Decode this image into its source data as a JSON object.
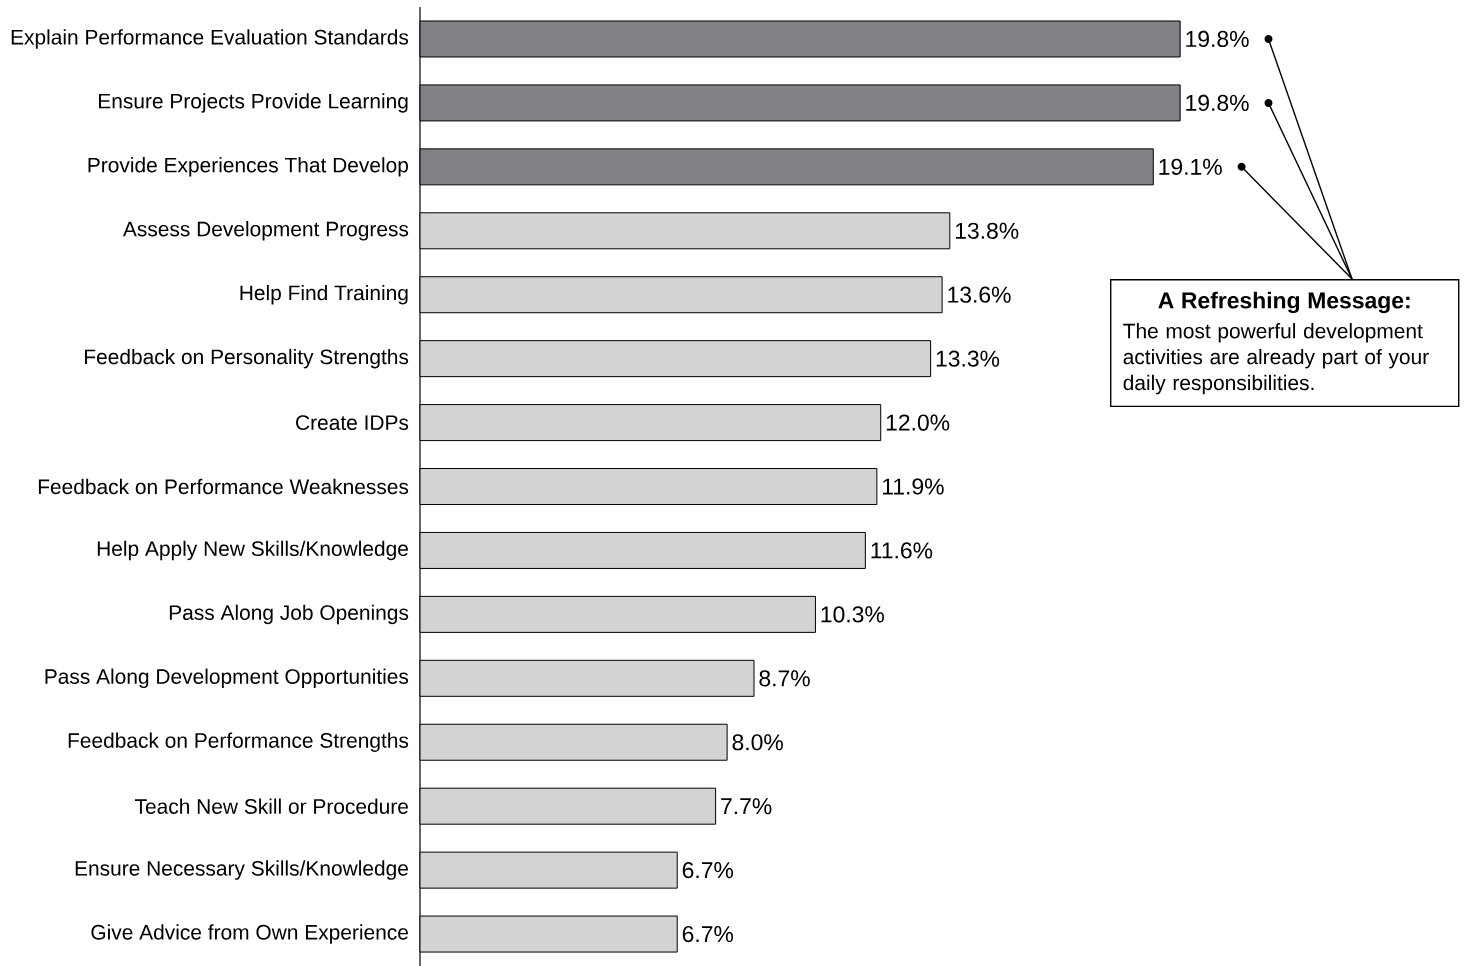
{
  "chart_data": {
    "type": "bar",
    "orientation": "horizontal",
    "categories": [
      "Explain Performance Evaluation Standards",
      "Ensure Projects Provide Learning",
      "Provide Experiences That Develop",
      "Assess Development Progress",
      "Help Find Training",
      "Feedback on Personality Strengths",
      "Create IDPs",
      "Feedback on Performance Weaknesses",
      "Help Apply New Skills/Knowledge",
      "Pass Along Job Openings",
      "Pass Along Development Opportunities",
      "Feedback on Performance Strengths",
      "Teach New Skill or Procedure",
      "Ensure Necessary Skills/Knowledge",
      "Give Advice from Own Experience"
    ],
    "values": [
      19.8,
      19.8,
      19.1,
      13.8,
      13.6,
      13.3,
      12.0,
      11.9,
      11.6,
      10.3,
      8.7,
      8.0,
      7.7,
      6.7,
      6.7
    ],
    "value_labels": [
      "19.8%",
      "19.8%",
      "19.1%",
      "13.8%",
      "13.6%",
      "13.3%",
      "12.0%",
      "11.9%",
      "11.6%",
      "10.3%",
      "8.7%",
      "8.0%",
      "7.7%",
      "6.7%",
      "6.7%"
    ],
    "colors": [
      "#808285",
      "#808285",
      "#808285",
      "#d1d3d4",
      "#d1d3d4",
      "#d1d3d4",
      "#d1d3d4",
      "#d1d3d4",
      "#d1d3d4",
      "#d1d3d4",
      "#d1d3d4",
      "#d1d3d4",
      "#d1d3d4",
      "#d1d3d4",
      "#d1d3d4"
    ],
    "annotations": [
      "A Refreshing Message:",
      "The most powerful development activities are already part of your daily responsibilities."
    ]
  }
}
